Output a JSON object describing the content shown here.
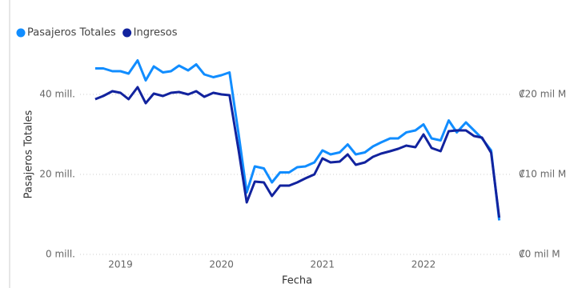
{
  "chart_data": {
    "type": "line",
    "x_label": "Fecha",
    "y_label": "Pasajeros Totales",
    "legend": "top-left",
    "grid": true,
    "x": [
      2018.75,
      2018.83,
      2018.92,
      2019,
      2019.08,
      2019.17,
      2019.25,
      2019.33,
      2019.42,
      2019.5,
      2019.58,
      2019.67,
      2019.75,
      2019.83,
      2019.92,
      2020,
      2020.08,
      2020.17,
      2020.25,
      2020.33,
      2020.42,
      2020.5,
      2020.58,
      2020.67,
      2020.75,
      2020.83,
      2020.92,
      2021,
      2021.08,
      2021.17,
      2021.25,
      2021.33,
      2021.42,
      2021.5,
      2021.58,
      2021.67,
      2021.75,
      2021.83,
      2021.92,
      2022,
      2022.08,
      2022.17,
      2022.25,
      2022.33,
      2022.42,
      2022.5,
      2022.58,
      2022.67,
      2022.75
    ],
    "xlim": [
      2018.6,
      2022.88
    ],
    "xticks": [
      2019,
      2020,
      2021,
      2022
    ],
    "ylim": [
      0,
      50
    ],
    "yticks": [
      {
        "value": 0,
        "label": "0 mill."
      },
      {
        "value": 20,
        "label": "20 mill."
      },
      {
        "value": 40,
        "label": "40 mill."
      }
    ],
    "y2lim": [
      0,
      25
    ],
    "y2ticks": [
      {
        "value": 0,
        "label": "₡0 mil M"
      },
      {
        "value": 10,
        "label": "₡10 mil M"
      },
      {
        "value": 20,
        "label": "₡20 mil M"
      }
    ],
    "series": [
      {
        "name": "Pasajeros Totales",
        "color": "#118dff",
        "values": [
          46.5,
          46.5,
          45.8,
          45.8,
          45.2,
          48.5,
          43.5,
          47,
          45.5,
          45.8,
          47.2,
          46,
          47.5,
          45,
          44.3,
          44.8,
          45.5,
          30,
          15.5,
          22,
          21.5,
          18,
          20.5,
          20.5,
          21.8,
          22,
          23,
          26,
          25,
          25.5,
          27.5,
          25,
          25.5,
          27,
          28,
          29,
          29,
          30.5,
          31,
          32.5,
          29,
          28.5,
          33.5,
          30.5,
          33,
          31,
          29,
          26,
          8.5
        ]
      },
      {
        "name": "Ingresos",
        "color": "#12239e",
        "axis": "y2",
        "values": [
          19.4,
          19.8,
          20.4,
          20.2,
          19.4,
          20.9,
          18.9,
          20.1,
          19.8,
          20.2,
          20.3,
          20.0,
          20.4,
          19.7,
          20.2,
          20.0,
          19.9,
          13,
          6.5,
          9.1,
          9.0,
          7.3,
          8.6,
          8.6,
          9.0,
          9.5,
          10.0,
          12.0,
          11.5,
          11.6,
          12.5,
          11.2,
          11.5,
          12.2,
          12.6,
          12.9,
          13.2,
          13.6,
          13.4,
          15.0,
          13.3,
          12.9,
          15.4,
          15.5,
          15.5,
          14.8,
          14.6,
          12.7,
          4.6
        ]
      }
    ]
  }
}
